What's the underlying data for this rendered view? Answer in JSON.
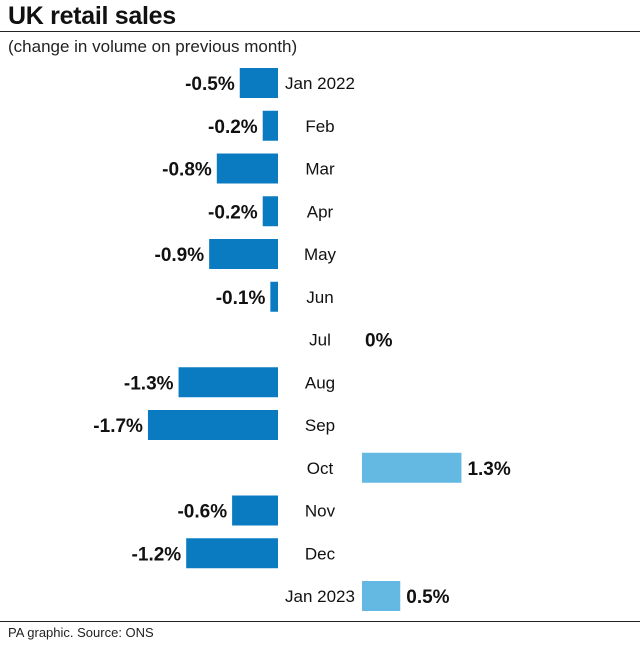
{
  "chart_data": {
    "type": "bar",
    "orientation": "horizontal",
    "title": "UK retail sales",
    "subtitle": "(change in volume on previous month)",
    "categories": [
      "Jan 2022",
      "Feb",
      "Mar",
      "Apr",
      "May",
      "Jun",
      "Jul",
      "Aug",
      "Sep",
      "Oct",
      "Nov",
      "Dec",
      "Jan 2023"
    ],
    "values": [
      -0.5,
      -0.2,
      -0.8,
      -0.2,
      -0.9,
      -0.1,
      0,
      -1.3,
      -1.7,
      1.3,
      -0.6,
      -1.2,
      0.5
    ],
    "value_labels": [
      "-0.5%",
      "-0.2%",
      "-0.8%",
      "-0.2%",
      "-0.9%",
      "-0.1%",
      "0%",
      "-1.3%",
      "-1.7%",
      "1.3%",
      "-0.6%",
      "-1.2%",
      "0.5%"
    ],
    "colors": {
      "negative": "#0a7bc1",
      "positive": "#64b9e2"
    },
    "grid": false,
    "legend": "none"
  },
  "footer": {
    "source": "PA graphic. Source: ONS"
  }
}
